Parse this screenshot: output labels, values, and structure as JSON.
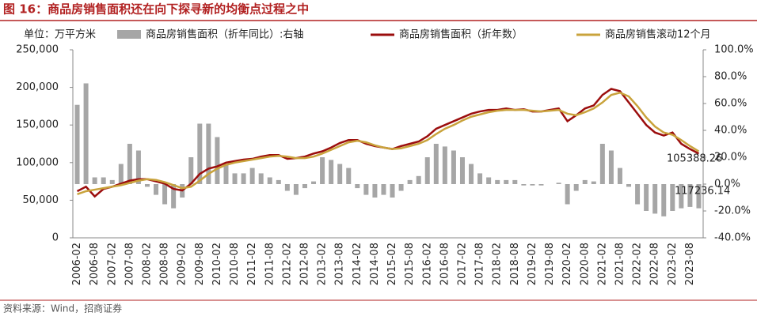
{
  "chart_data": {
    "type": "combo",
    "title": "图 16：商品房销售面积还在向下探寻新的均衡点过程之中",
    "unit_label": "单位：万平方米",
    "source": "资料来源：Wind，招商证券",
    "categories": [
      "2006-02",
      null,
      "2006-08",
      null,
      "2007-02",
      null,
      "2007-08",
      null,
      "2008-02",
      null,
      "2008-08",
      null,
      "2009-02",
      null,
      "2009-08",
      null,
      "2010-02",
      null,
      "2010-08",
      null,
      "2011-02",
      null,
      "2011-08",
      null,
      "2012-02",
      null,
      "2012-08",
      null,
      "2013-02",
      null,
      "2013-08",
      null,
      "2014-02",
      null,
      "2014-08",
      null,
      "2015-02",
      null,
      "2015-08",
      null,
      "2016-02",
      null,
      "2016-08",
      null,
      "2017-02",
      null,
      "2017-08",
      null,
      "2018-02",
      null,
      "2018-08",
      null,
      "2019-02",
      null,
      "2019-08",
      null,
      "2020-02",
      null,
      "2020-08",
      null,
      "2021-02",
      null,
      "2021-08",
      null,
      "2022-02",
      null,
      "2022-08",
      null,
      "2023-02",
      null,
      "2023-08",
      null
    ],
    "series": [
      {
        "name": "商品房销售面积（折年同比）:右轴",
        "type": "bar",
        "axis": "y2",
        "color": "#a6a6a6",
        "values": [
          59,
          75,
          5,
          5,
          3,
          15,
          30,
          25,
          -2,
          -8,
          -15,
          -18,
          -10,
          20,
          45,
          45,
          35,
          15,
          8,
          8,
          12,
          8,
          5,
          3,
          -5,
          -8,
          -3,
          2,
          20,
          18,
          15,
          12,
          -3,
          -8,
          -10,
          -8,
          -10,
          -5,
          3,
          6,
          20,
          30,
          28,
          25,
          20,
          15,
          8,
          5,
          3,
          3,
          3,
          -1,
          -1,
          -1,
          0,
          1,
          -15,
          -5,
          3,
          2,
          30,
          25,
          12,
          -2,
          -15,
          -20,
          -22,
          -24,
          -20,
          -18,
          -17,
          -18
        ]
      },
      {
        "name": "商品房销售面积（折年数）",
        "type": "line",
        "color": "#9b0d0d",
        "values": [
          62000,
          68000,
          55000,
          65000,
          68000,
          72000,
          76000,
          78000,
          78000,
          75000,
          72000,
          65000,
          63000,
          72000,
          85000,
          92000,
          95000,
          100000,
          102000,
          104000,
          105000,
          108000,
          110000,
          110000,
          105000,
          106000,
          108000,
          112000,
          115000,
          120000,
          126000,
          130000,
          130000,
          125000,
          122000,
          120000,
          118000,
          122000,
          125000,
          128000,
          135000,
          145000,
          150000,
          155000,
          160000,
          165000,
          168000,
          170000,
          170000,
          172000,
          170000,
          171000,
          168000,
          168000,
          170000,
          172000,
          155000,
          163000,
          172000,
          176000,
          190000,
          198000,
          195000,
          180000,
          165000,
          150000,
          140000,
          136000,
          140000,
          125000,
          118000,
          112000
        ]
      },
      {
        "name": "商品房销售滚动12个月",
        "type": "line",
        "color": "#c9a33c",
        "values": [
          58000,
          62000,
          64000,
          66000,
          68000,
          70000,
          73000,
          76000,
          78000,
          77000,
          74000,
          70000,
          66000,
          68000,
          76000,
          85000,
          92000,
          97000,
          100000,
          102000,
          104000,
          106000,
          108000,
          109000,
          108000,
          106000,
          106000,
          108000,
          112000,
          117000,
          122000,
          127000,
          129000,
          127000,
          123000,
          120000,
          118000,
          119000,
          122000,
          125000,
          130000,
          138000,
          145000,
          150000,
          156000,
          161000,
          164000,
          167000,
          169000,
          170000,
          170000,
          170000,
          169000,
          168000,
          169000,
          170000,
          165000,
          163000,
          167000,
          172000,
          180000,
          190000,
          193000,
          188000,
          175000,
          160000,
          148000,
          140000,
          137000,
          130000,
          122000,
          115000
        ]
      }
    ],
    "annotations": [
      "105388.26",
      "117236.14"
    ],
    "ylim": [
      0,
      250000
    ],
    "yticks": [
      0,
      {
        "value": 50000,
        "label": "50,000"
      },
      {
        "value": 100000,
        "label": "100,000"
      },
      {
        "value": 150000,
        "label": "150,000"
      },
      {
        "value": 200000,
        "label": "200,000"
      },
      {
        "value": 250000,
        "label": "250,000"
      }
    ],
    "y2lim": [
      -40,
      100
    ],
    "y2ticks": [
      {
        "value": -40,
        "label": "-40.0%"
      },
      {
        "value": -20,
        "label": "-20.0%"
      },
      {
        "value": 0,
        "label": "0.0%"
      },
      {
        "value": 20,
        "label": "20.0%"
      },
      {
        "value": 40,
        "label": "40.0%"
      },
      {
        "value": 60,
        "label": "60.0%"
      },
      {
        "value": 80,
        "label": "80.0%"
      },
      {
        "value": 100,
        "label": "100.0%"
      }
    ]
  }
}
